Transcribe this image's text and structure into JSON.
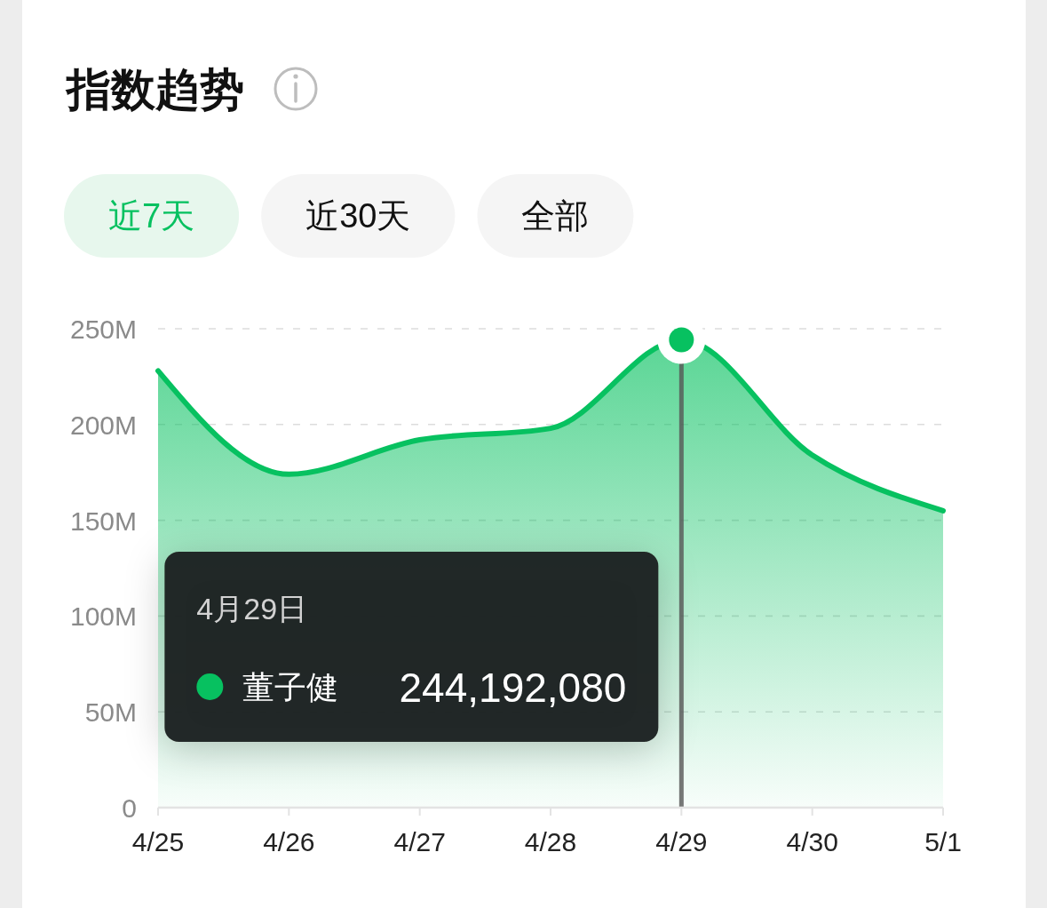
{
  "chart_data": [
    {
      "type": "other",
      "title": "指数趋势",
      "annotations": [
        "近7天",
        "近30天",
        "全部"
      ]
    },
    {
      "type": "area",
      "categories": [
        "4/25",
        "4/26",
        "4/27",
        "4/28",
        "4/29",
        "4/30",
        "5/1"
      ],
      "series": [
        {
          "name": "董子健",
          "color": "#07c160",
          "values": [
            228000000,
            174000000,
            192000000,
            198000000,
            244192080,
            184000000,
            155000000
          ]
        },
        {
          "type": "scatter",
          "color": "#07c160",
          "marker": "circle",
          "x": [
            "4/29"
          ],
          "values": [
            244192080
          ]
        }
      ],
      "ylim": [
        0,
        250000000
      ],
      "yticks": [
        0,
        {
          "value": 50000000,
          "label": "50M"
        },
        {
          "value": 100000000,
          "label": "100M"
        },
        {
          "value": 150000000,
          "label": "150M"
        },
        {
          "value": 200000000,
          "label": "200M"
        },
        {
          "value": 250000000,
          "label": "250M"
        }
      ],
      "grid": "y",
      "ref_lines": [
        {
          "axis": "x",
          "value": "4/29",
          "color": "#555555"
        }
      ],
      "annotations": [
        "4月29日",
        "244,192,080"
      ]
    }
  ]
}
